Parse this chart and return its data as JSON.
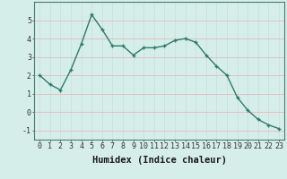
{
  "x": [
    0,
    1,
    2,
    3,
    4,
    5,
    6,
    7,
    8,
    9,
    10,
    11,
    12,
    13,
    14,
    15,
    16,
    17,
    18,
    19,
    20,
    21,
    22,
    23
  ],
  "y": [
    2.0,
    1.5,
    1.2,
    2.3,
    3.7,
    5.3,
    4.5,
    3.6,
    3.6,
    3.1,
    3.5,
    3.5,
    3.6,
    3.9,
    4.0,
    3.8,
    3.1,
    2.5,
    2.0,
    0.8,
    0.1,
    -0.4,
    -0.7,
    -0.9
  ],
  "xlabel": "Humidex (Indice chaleur)",
  "ylim": [
    -1.5,
    6.0
  ],
  "xlim": [
    -0.5,
    23.5
  ],
  "yticks": [
    -1,
    0,
    1,
    2,
    3,
    4,
    5
  ],
  "xticks": [
    0,
    1,
    2,
    3,
    4,
    5,
    6,
    7,
    8,
    9,
    10,
    11,
    12,
    13,
    14,
    15,
    16,
    17,
    18,
    19,
    20,
    21,
    22,
    23
  ],
  "line_color": "#2d7a6b",
  "marker_color": "#2d7a6b",
  "bg_color": "#d6eeea",
  "grid_color_h": "#e8b0b0",
  "grid_color_v": "#c8ddd9",
  "xlabel_fontsize": 7.5,
  "tick_fontsize": 6.0
}
